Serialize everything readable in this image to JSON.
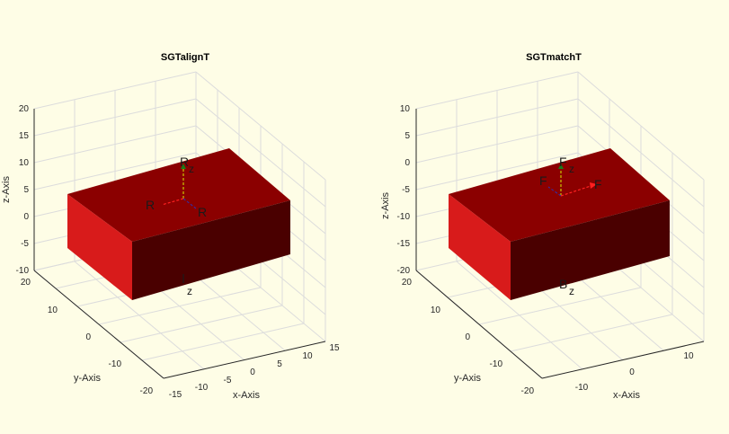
{
  "figure": {
    "background": "#fefde6"
  },
  "chart_data": [
    {
      "type": "3d-box",
      "title": "SGTalignT",
      "xlabel": "x-Axis",
      "ylabel": "y-Axis",
      "zlabel": "z-Axis",
      "x_ticks": [
        "-15",
        "-10",
        "-5",
        "0",
        "5",
        "10",
        "15"
      ],
      "y_ticks": [
        "-20",
        "-10",
        "0",
        "10",
        "20"
      ],
      "z_ticks": [
        "-10",
        "-5",
        "0",
        "5",
        "10",
        "15",
        "20"
      ],
      "grid": true,
      "box_colors": {
        "top": "#8b0000",
        "front": "#d81b1b",
        "side": "#4a0000"
      },
      "frame_labels": [
        "R",
        "R",
        "R",
        "z",
        "z"
      ]
    },
    {
      "type": "3d-box",
      "title": "SGTmatchT",
      "xlabel": "x-Axis",
      "ylabel": "y-Axis",
      "zlabel": "z-Axis",
      "x_ticks": [
        "-10",
        "0",
        "10"
      ],
      "y_ticks": [
        "-20",
        "-10",
        "0",
        "10",
        "20"
      ],
      "z_ticks": [
        "-20",
        "-15",
        "-10",
        "-5",
        "0",
        "5",
        "10"
      ],
      "grid": true,
      "box_colors": {
        "top": "#8b0000",
        "front": "#d81b1b",
        "side": "#4a0000"
      },
      "frame_labels": [
        "F",
        "F",
        "F",
        "z",
        "B",
        "z"
      ]
    }
  ]
}
